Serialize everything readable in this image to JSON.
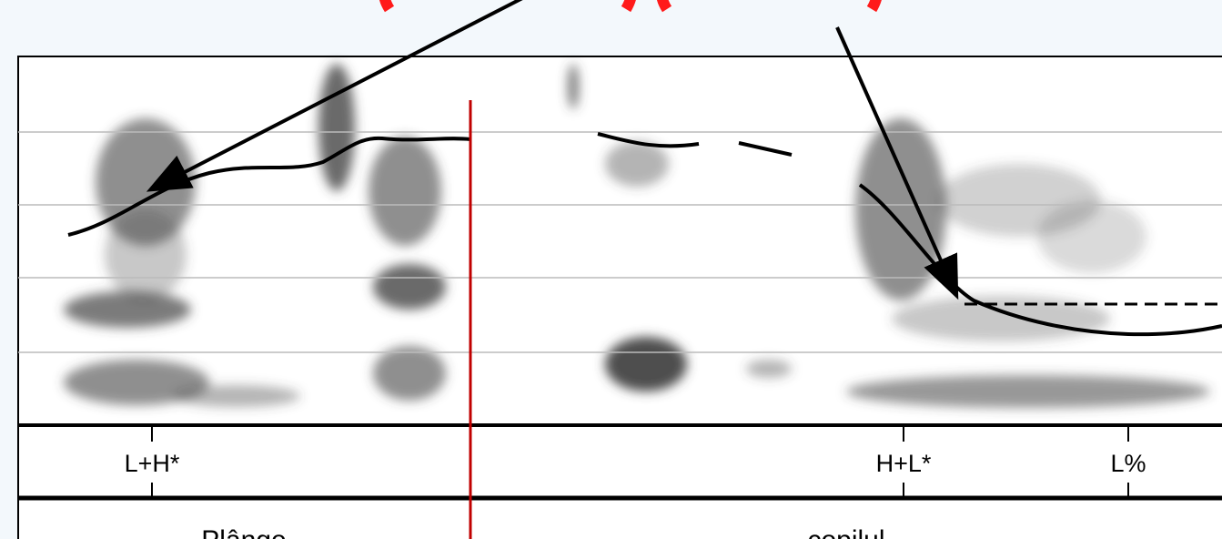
{
  "tone_tier": [
    "L+H*",
    "H+L*",
    "L%"
  ],
  "word_tier": [
    "Plânge",
    "copilul"
  ]
}
